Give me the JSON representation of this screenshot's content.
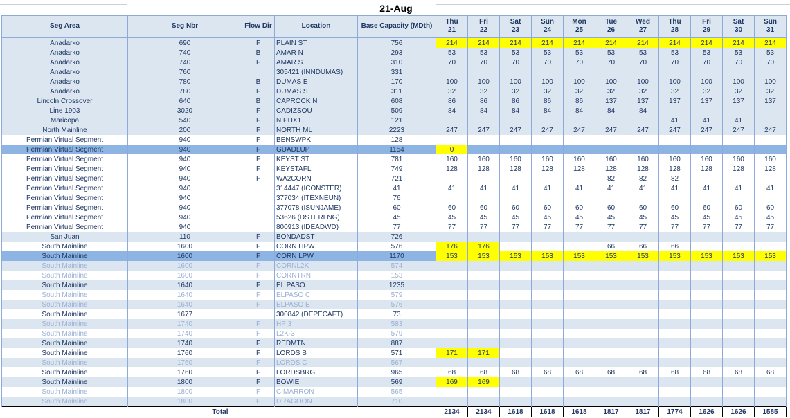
{
  "sheet": {
    "title": "21-Aug",
    "headers": [
      "Seg Area",
      "Seg Nbr",
      "Flow Dir",
      "Location",
      "Base Capacity (MDth)"
    ],
    "days": [
      {
        "dow": "Thu",
        "day": "21"
      },
      {
        "dow": "Fri",
        "day": "22"
      },
      {
        "dow": "Sat",
        "day": "23"
      },
      {
        "dow": "Sun",
        "day": "24"
      },
      {
        "dow": "Mon",
        "day": "25"
      },
      {
        "dow": "Tue",
        "day": "26"
      },
      {
        "dow": "Wed",
        "day": "27"
      },
      {
        "dow": "Thu",
        "day": "28"
      },
      {
        "dow": "Fri",
        "day": "29"
      },
      {
        "dow": "Sat",
        "day": "30"
      },
      {
        "dow": "Sun",
        "day": "31"
      }
    ],
    "rows": [
      {
        "area": "Anadarko",
        "nbr": "690",
        "dir": "F",
        "loc": "PLAIN ST",
        "cap": "756",
        "vals": [
          "214",
          "214",
          "214",
          "214",
          "214",
          "214",
          "214",
          "214",
          "214",
          "214",
          "214"
        ],
        "hl": [
          0,
          1,
          2,
          3,
          4,
          5,
          6,
          7,
          8,
          9,
          10
        ]
      },
      {
        "area": "Anadarko",
        "nbr": "740",
        "dir": "B",
        "loc": "AMAR N",
        "cap": "293",
        "vals": [
          "53",
          "53",
          "53",
          "53",
          "53",
          "53",
          "53",
          "53",
          "53",
          "53",
          "53"
        ]
      },
      {
        "area": "Anadarko",
        "nbr": "740",
        "dir": "F",
        "loc": "AMAR S",
        "cap": "310",
        "vals": [
          "70",
          "70",
          "70",
          "70",
          "70",
          "70",
          "70",
          "70",
          "70",
          "70",
          "70"
        ]
      },
      {
        "area": "Anadarko",
        "nbr": "760",
        "dir": "",
        "loc": "305421 (INNDUMAS)",
        "cap": "331",
        "vals": [
          "",
          "",
          "",
          "",
          "",
          "",
          "",
          "",
          "",
          "",
          ""
        ]
      },
      {
        "area": "Anadarko",
        "nbr": "780",
        "dir": "B",
        "loc": "DUMAS E",
        "cap": "170",
        "vals": [
          "100",
          "100",
          "100",
          "100",
          "100",
          "100",
          "100",
          "100",
          "100",
          "100",
          "100"
        ]
      },
      {
        "area": "Anadarko",
        "nbr": "780",
        "dir": "F",
        "loc": "DUMAS S",
        "cap": "311",
        "vals": [
          "32",
          "32",
          "32",
          "32",
          "32",
          "32",
          "32",
          "32",
          "32",
          "32",
          "32"
        ]
      },
      {
        "area": "Lincoln Crossover",
        "nbr": "640",
        "dir": "B",
        "loc": "CAPROCK N",
        "cap": "608",
        "vals": [
          "86",
          "86",
          "86",
          "86",
          "86",
          "137",
          "137",
          "137",
          "137",
          "137",
          "137"
        ]
      },
      {
        "area": "Line 1903",
        "nbr": "3020",
        "dir": "F",
        "loc": "CADIZSOU",
        "cap": "509",
        "vals": [
          "84",
          "84",
          "84",
          "84",
          "84",
          "84",
          "84",
          "",
          "",
          "",
          ""
        ]
      },
      {
        "area": "Maricopa",
        "nbr": "540",
        "dir": "F",
        "loc": "N PHX1",
        "cap": "121",
        "vals": [
          "",
          "",
          "",
          "",
          "",
          "",
          "",
          "41",
          "41",
          "41",
          ""
        ]
      },
      {
        "area": "North Mainline",
        "nbr": "200",
        "dir": "F",
        "loc": "NORTH ML",
        "cap": "2223",
        "vals": [
          "247",
          "247",
          "247",
          "247",
          "247",
          "247",
          "247",
          "247",
          "247",
          "247",
          "247"
        ]
      },
      {
        "area": "Permian Virtual Segment",
        "nbr": "940",
        "dir": "F",
        "loc": "BENSWPK",
        "cap": "128",
        "vals": [
          "",
          "",
          "",
          "",
          "",
          "",
          "",
          "",
          "",
          "",
          ""
        ]
      },
      {
        "area": "Permian Virtual Segment",
        "nbr": "940",
        "dir": "F",
        "loc": "GUADLUP",
        "cap": "1154",
        "vals": [
          "0",
          "",
          "",
          "",
          "",
          "",
          "",
          "",
          "",
          "",
          ""
        ],
        "hl": [
          0
        ],
        "sel": true
      },
      {
        "area": "Permian Virtual Segment",
        "nbr": "940",
        "dir": "F",
        "loc": "KEYST ST",
        "cap": "781",
        "vals": [
          "160",
          "160",
          "160",
          "160",
          "160",
          "160",
          "160",
          "160",
          "160",
          "160",
          "160"
        ]
      },
      {
        "area": "Permian Virtual Segment",
        "nbr": "940",
        "dir": "F",
        "loc": "KEYSTAFL",
        "cap": "749",
        "vals": [
          "128",
          "128",
          "128",
          "128",
          "128",
          "128",
          "128",
          "128",
          "128",
          "128",
          "128"
        ]
      },
      {
        "area": "Permian Virtual Segment",
        "nbr": "940",
        "dir": "F",
        "loc": "WA2CORN",
        "cap": "721",
        "vals": [
          "",
          "",
          "",
          "",
          "",
          "82",
          "82",
          "82",
          "",
          "",
          ""
        ]
      },
      {
        "area": "Permian Virtual Segment",
        "nbr": "940",
        "dir": "",
        "loc": "314447 (ICONSTER)",
        "cap": "41",
        "vals": [
          "41",
          "41",
          "41",
          "41",
          "41",
          "41",
          "41",
          "41",
          "41",
          "41",
          "41"
        ]
      },
      {
        "area": "Permian Virtual Segment",
        "nbr": "940",
        "dir": "",
        "loc": "377034 (ITEXNEUN)",
        "cap": "76",
        "vals": [
          "",
          "",
          "",
          "",
          "",
          "",
          "",
          "",
          "",
          "",
          ""
        ]
      },
      {
        "area": "Permian Virtual Segment",
        "nbr": "940",
        "dir": "",
        "loc": "377078 (ISUNJAME)",
        "cap": "60",
        "vals": [
          "60",
          "60",
          "60",
          "60",
          "60",
          "60",
          "60",
          "60",
          "60",
          "60",
          "60"
        ]
      },
      {
        "area": "Permian Virtual Segment",
        "nbr": "940",
        "dir": "",
        "loc": "53626 (DSTERLNG)",
        "cap": "45",
        "vals": [
          "45",
          "45",
          "45",
          "45",
          "45",
          "45",
          "45",
          "45",
          "45",
          "45",
          "45"
        ]
      },
      {
        "area": "Permian Virtual Segment",
        "nbr": "940",
        "dir": "",
        "loc": "800913 (IDEADWD)",
        "cap": "77",
        "vals": [
          "77",
          "77",
          "77",
          "77",
          "77",
          "77",
          "77",
          "77",
          "77",
          "77",
          "77"
        ]
      },
      {
        "area": "San Juan",
        "nbr": "110",
        "dir": "F",
        "loc": "BONDADST",
        "cap": "726",
        "vals": [
          "",
          "",
          "",
          "",
          "",
          "",
          "",
          "",
          "",
          "",
          ""
        ]
      },
      {
        "area": "South Mainline",
        "nbr": "1600",
        "dir": "F",
        "loc": "CORN HPW",
        "cap": "576",
        "vals": [
          "176",
          "176",
          "",
          "",
          "",
          "66",
          "66",
          "66",
          "",
          "",
          ""
        ],
        "hl": [
          0,
          1
        ]
      },
      {
        "area": "South Mainline",
        "nbr": "1600",
        "dir": "F",
        "loc": "CORN LPW",
        "cap": "1170",
        "vals": [
          "153",
          "153",
          "153",
          "153",
          "153",
          "153",
          "153",
          "153",
          "153",
          "153",
          "153"
        ],
        "hl": [
          0,
          1,
          2,
          3,
          4,
          5,
          6,
          7,
          8,
          9,
          10
        ],
        "sel": true
      },
      {
        "area": "South Mainline",
        "nbr": "1600",
        "dir": "F",
        "loc": "CORNL2K",
        "cap": "574",
        "vals": [
          "",
          "",
          "",
          "",
          "",
          "",
          "",
          "",
          "",
          "",
          ""
        ],
        "dim": true
      },
      {
        "area": "South Mainline",
        "nbr": "1600",
        "dir": "F",
        "loc": "CORNTRN",
        "cap": "153",
        "vals": [
          "",
          "",
          "",
          "",
          "",
          "",
          "",
          "",
          "",
          "",
          ""
        ],
        "dim": true
      },
      {
        "area": "South Mainline",
        "nbr": "1640",
        "dir": "F",
        "loc": "EL PASO",
        "cap": "1235",
        "vals": [
          "",
          "",
          "",
          "",
          "",
          "",
          "",
          "",
          "",
          "",
          ""
        ]
      },
      {
        "area": "South Mainline",
        "nbr": "1640",
        "dir": "F",
        "loc": "ELPASO C",
        "cap": "579",
        "vals": [
          "",
          "",
          "",
          "",
          "",
          "",
          "",
          "",
          "",
          "",
          ""
        ],
        "dim": true
      },
      {
        "area": "South Mainline",
        "nbr": "1640",
        "dir": "F",
        "loc": "ELPASO E",
        "cap": "576",
        "vals": [
          "",
          "",
          "",
          "",
          "",
          "",
          "",
          "",
          "",
          "",
          ""
        ],
        "dim": true
      },
      {
        "area": "South Mainline",
        "nbr": "1677",
        "dir": "",
        "loc": "300842 (DEPECAFT)",
        "cap": "73",
        "vals": [
          "",
          "",
          "",
          "",
          "",
          "",
          "",
          "",
          "",
          "",
          ""
        ]
      },
      {
        "area": "South Mainline",
        "nbr": "1740",
        "dir": "F",
        "loc": "HP 3",
        "cap": "583",
        "vals": [
          "",
          "",
          "",
          "",
          "",
          "",
          "",
          "",
          "",
          "",
          ""
        ],
        "dim": true
      },
      {
        "area": "South Mainline",
        "nbr": "1740",
        "dir": "F",
        "loc": "L2K-3",
        "cap": "579",
        "vals": [
          "",
          "",
          "",
          "",
          "",
          "",
          "",
          "",
          "",
          "",
          ""
        ],
        "dim": true
      },
      {
        "area": "South Mainline",
        "nbr": "1740",
        "dir": "F",
        "loc": "REDMTN",
        "cap": "887",
        "vals": [
          "",
          "",
          "",
          "",
          "",
          "",
          "",
          "",
          "",
          "",
          ""
        ]
      },
      {
        "area": "South Mainline",
        "nbr": "1760",
        "dir": "F",
        "loc": "LORDS B",
        "cap": "571",
        "vals": [
          "171",
          "171",
          "",
          "",
          "",
          "",
          "",
          "",
          "",
          "",
          ""
        ],
        "hl": [
          0,
          1
        ]
      },
      {
        "area": "South Mainline",
        "nbr": "1760",
        "dir": "F",
        "loc": "LORDS C",
        "cap": "567",
        "vals": [
          "",
          "",
          "",
          "",
          "",
          "",
          "",
          "",
          "",
          "",
          ""
        ],
        "dim": true
      },
      {
        "area": "South Mainline",
        "nbr": "1760",
        "dir": "F",
        "loc": "LORDSBRG",
        "cap": "965",
        "vals": [
          "68",
          "68",
          "68",
          "68",
          "68",
          "68",
          "68",
          "68",
          "68",
          "68",
          "68"
        ]
      },
      {
        "area": "South Mainline",
        "nbr": "1800",
        "dir": "F",
        "loc": "BOWIE",
        "cap": "569",
        "vals": [
          "169",
          "169",
          "",
          "",
          "",
          "",
          "",
          "",
          "",
          "",
          ""
        ],
        "hl": [
          0,
          1
        ]
      },
      {
        "area": "South Mainline",
        "nbr": "1800",
        "dir": "F",
        "loc": "CIMARRON",
        "cap": "565",
        "vals": [
          "",
          "",
          "",
          "",
          "",
          "",
          "",
          "",
          "",
          "",
          ""
        ],
        "dim": true
      },
      {
        "area": "South Mainline",
        "nbr": "1800",
        "dir": "F",
        "loc": "DRAGOON",
        "cap": "710",
        "vals": [
          "",
          "",
          "",
          "",
          "",
          "",
          "",
          "",
          "",
          "",
          ""
        ],
        "dim": true
      }
    ],
    "total_label": "Total",
    "totals": [
      "2134",
      "2134",
      "1618",
      "1618",
      "1618",
      "1817",
      "1817",
      "1774",
      "1626",
      "1626",
      "1585"
    ]
  }
}
